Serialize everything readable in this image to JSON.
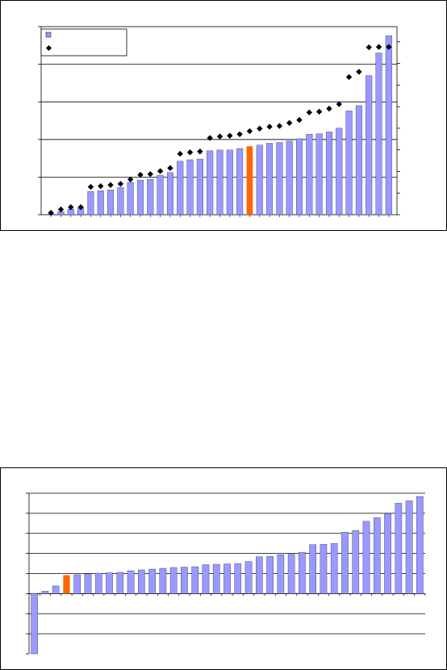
{
  "chart_data": [
    {
      "type": "bar",
      "series": [
        {
          "kind": "bar",
          "values": [
            0.2,
            0.8,
            1.5,
            1.8,
            6.2,
            6.4,
            6.6,
            7.2,
            8.6,
            9.2,
            9.4,
            10.5,
            11.2,
            14.2,
            14.6,
            14.8,
            17.0,
            17.2,
            17.2,
            17.6,
            18.2,
            18.5,
            19.0,
            19.2,
            19.6,
            20.2,
            21.4,
            21.5,
            22.0,
            23.0,
            27.6,
            29.0,
            37.0,
            43.0,
            47.6
          ],
          "highlight_index": 20,
          "color": "#9999ff",
          "highlight_color": "#ff6600"
        },
        {
          "kind": "marker",
          "values": [
            0.5,
            1.4,
            2.0,
            2.0,
            7.4,
            7.6,
            7.9,
            8.2,
            9.4,
            10.6,
            10.8,
            11.6,
            12.4,
            16.2,
            16.6,
            16.8,
            20.4,
            20.8,
            21.0,
            21.4,
            22.2,
            22.9,
            23.4,
            23.6,
            24.4,
            25.2,
            27.2,
            27.4,
            28.2,
            29.4,
            36.6,
            38.0,
            44.5,
            44.6,
            44.6
          ],
          "color": "#000000"
        }
      ],
      "ylim": [
        0,
        50
      ],
      "grid": true,
      "legend_position": "top-left"
    },
    {
      "type": "bar",
      "values": [
        -30,
        1.2,
        3.8,
        9.2,
        9.4,
        9.8,
        10.2,
        10.4,
        10.6,
        11.4,
        11.8,
        12.2,
        12.6,
        13.0,
        13.2,
        13.4,
        14.4,
        14.6,
        14.8,
        15.0,
        16.0,
        18.4,
        18.6,
        19.4,
        19.6,
        20.6,
        24.4,
        24.6,
        25.0,
        30.6,
        31.4,
        36.0,
        37.8,
        39.8,
        45.0,
        46.2,
        48.4
      ],
      "highlight_index": 3,
      "color": "#9999ff",
      "highlight_color": "#ff6600",
      "ylim": [
        -30,
        50
      ],
      "grid": true
    }
  ]
}
